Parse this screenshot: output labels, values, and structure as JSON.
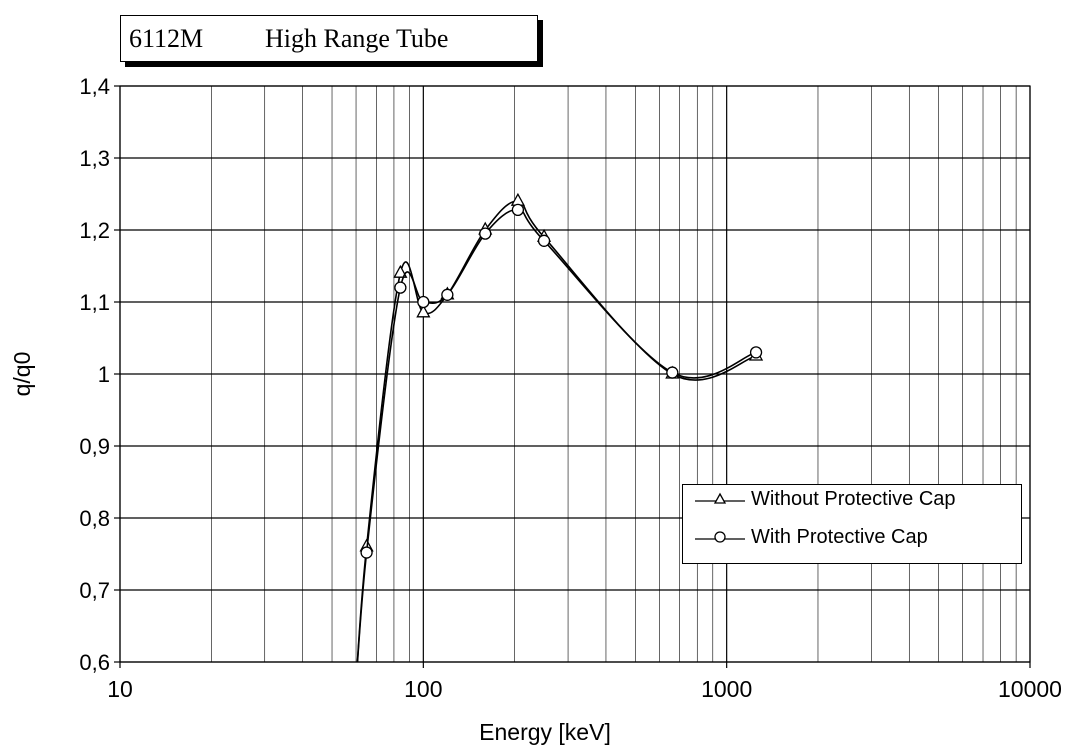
{
  "chart_data": {
    "type": "line",
    "title": "6112M High Range Tube",
    "title_parts": {
      "model": "6112M",
      "description": "High Range Tube"
    },
    "xlabel": "Energy [keV]",
    "ylabel": "q/q0",
    "x_scale": "log",
    "xlim": [
      10,
      10000
    ],
    "ylim": [
      0.6,
      1.4
    ],
    "x_ticks": [
      10,
      100,
      1000,
      10000
    ],
    "x_tick_labels": [
      "10",
      "100",
      "1000",
      "10000"
    ],
    "y_ticks": [
      0.6,
      0.7,
      0.8,
      0.9,
      1.0,
      1.1,
      1.2,
      1.3,
      1.4
    ],
    "y_tick_labels": [
      "0,6",
      "0,7",
      "0,8",
      "0,9",
      "1",
      "1,1",
      "1,2",
      "1,3",
      "1,4"
    ],
    "grid": true,
    "legend_position": "lower-right",
    "series": [
      {
        "name": "Without Protective Cap",
        "marker": "triangle",
        "x": [
          65,
          84,
          100,
          120,
          160,
          205,
          250,
          662,
          1250
        ],
        "y": [
          0.76,
          1.14,
          1.085,
          1.11,
          1.2,
          1.24,
          1.19,
          1.0,
          1.025
        ]
      },
      {
        "name": "With Protective Cap",
        "marker": "circle",
        "x": [
          65,
          84,
          100,
          120,
          160,
          205,
          250,
          662,
          1250
        ],
        "y": [
          0.752,
          1.12,
          1.1,
          1.11,
          1.195,
          1.228,
          1.185,
          1.002,
          1.03
        ]
      }
    ]
  }
}
